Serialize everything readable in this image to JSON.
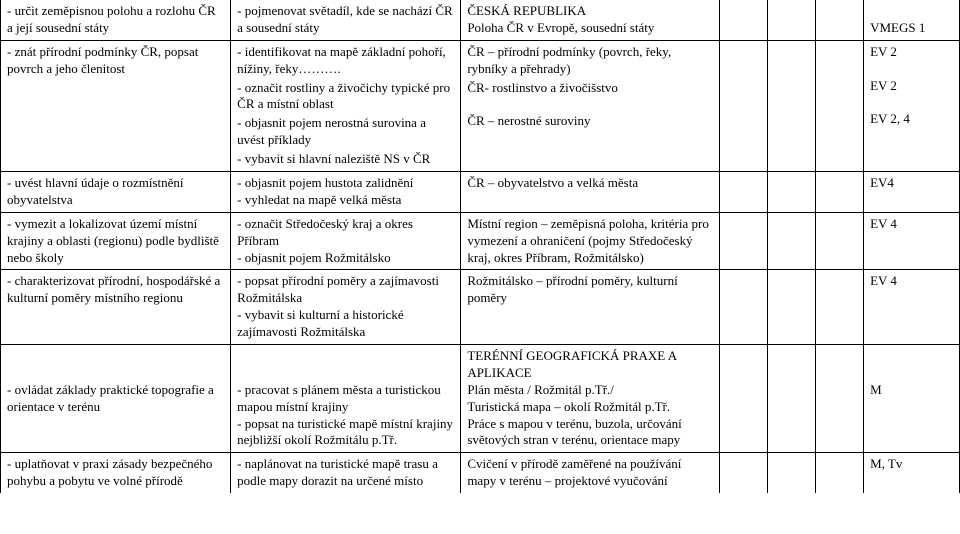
{
  "row1": {
    "col1": "- určit zeměpisnou polohu a rozlohu ČR a její sousední státy",
    "col2": "- pojmenovat světadíl, kde se nachází ČR a sousední státy",
    "col3a": "ČESKÁ REPUBLIKA",
    "col3b": "Poloha ČR v Evropě, sousední státy",
    "col7": "VMEGS 1"
  },
  "row2": {
    "col1": "- znát přírodní podmínky ČR, popsat povrch a jeho členitost",
    "col2a": "- identifikovat na mapě základní pohoří, nížiny, řeky……….",
    "col2b": "- označit rostliny a živočichy typické pro ČR a místní oblast",
    "col2c": "- objasnit pojem nerostná surovina a uvést příklady",
    "col2d": "- vybavit si hlavní naleziště NS v ČR",
    "col3a": "ČR – přírodní podmínky (povrch, řeky, rybníky a přehrady)",
    "col3b": "ČR- rostlinstvo a živočišstvo",
    "col3c": "ČR – nerostné suroviny",
    "col7a": "EV 2",
    "col7b": "EV 2",
    "col7c": "EV 2, 4"
  },
  "row3": {
    "col1": "- uvést hlavní údaje o rozmístnění obyvatelstva",
    "col2a": "- objasnit pojem hustota zalidnění",
    "col2b": "- vyhledat na mapě velká města",
    "col3": "ČR – obyvatelstvo a velká města",
    "col7": "EV4"
  },
  "row4": {
    "col1": "- vymezit a lokalizovat území místní krajiny a oblasti (regionu) podle bydliště nebo školy",
    "col2a": "- označit Středočeský kraj a okres Příbram",
    "col2b": "- objasnit pojem Rožmitálsko",
    "col3": "Místní region – zeměpisná poloha, kritéria pro vymezení a ohraničení (pojmy Středočeský kraj, okres Příbram, Rožmitálsko)",
    "col7": "EV 4"
  },
  "row5": {
    "col1": "- charakterizovat přírodní, hospodářské a kulturní poměry místního regionu",
    "col2a": "- popsat přírodní poměry a zajímavosti Rožmitálska",
    "col2b": "- vybavit si kulturní a historické zajímavosti Rožmitálska",
    "col3": "Rožmitálsko – přírodní poměry, kulturní poměry",
    "col7": "EV 4"
  },
  "row6": {
    "col1": "- ovládat základy praktické topografie a orientace v terénu",
    "col2a": "- pracovat s plánem města a turistickou mapou místní krajiny",
    "col2b": "- popsat na turistické mapě místní krajiny nejbližší okolí Rožmitálu p.Tř.",
    "col3a": "TERÉNNÍ GEOGRAFICKÁ PRAXE A APLIKACE",
    "col3b": "Plán města / Rožmitál p.Tř./",
    "col3c": "Turistická mapa – okolí Rožmitál p.Tř.",
    "col3d": "Práce s mapou v terénu, buzola, určování světových stran v terénu, orientace mapy",
    "col7": "M"
  },
  "row7": {
    "col1": "- uplatňovat v praxi zásady bezpečného pohybu a pobytu ve volné přírodě",
    "col2": "- naplánovat na turistické mapě trasu a podle mapy dorazit na určené místo",
    "col3": "Cvičení v přírodě zaměřené na používání mapy v terénu – projektové vyučování",
    "col7": "M, Tv"
  }
}
